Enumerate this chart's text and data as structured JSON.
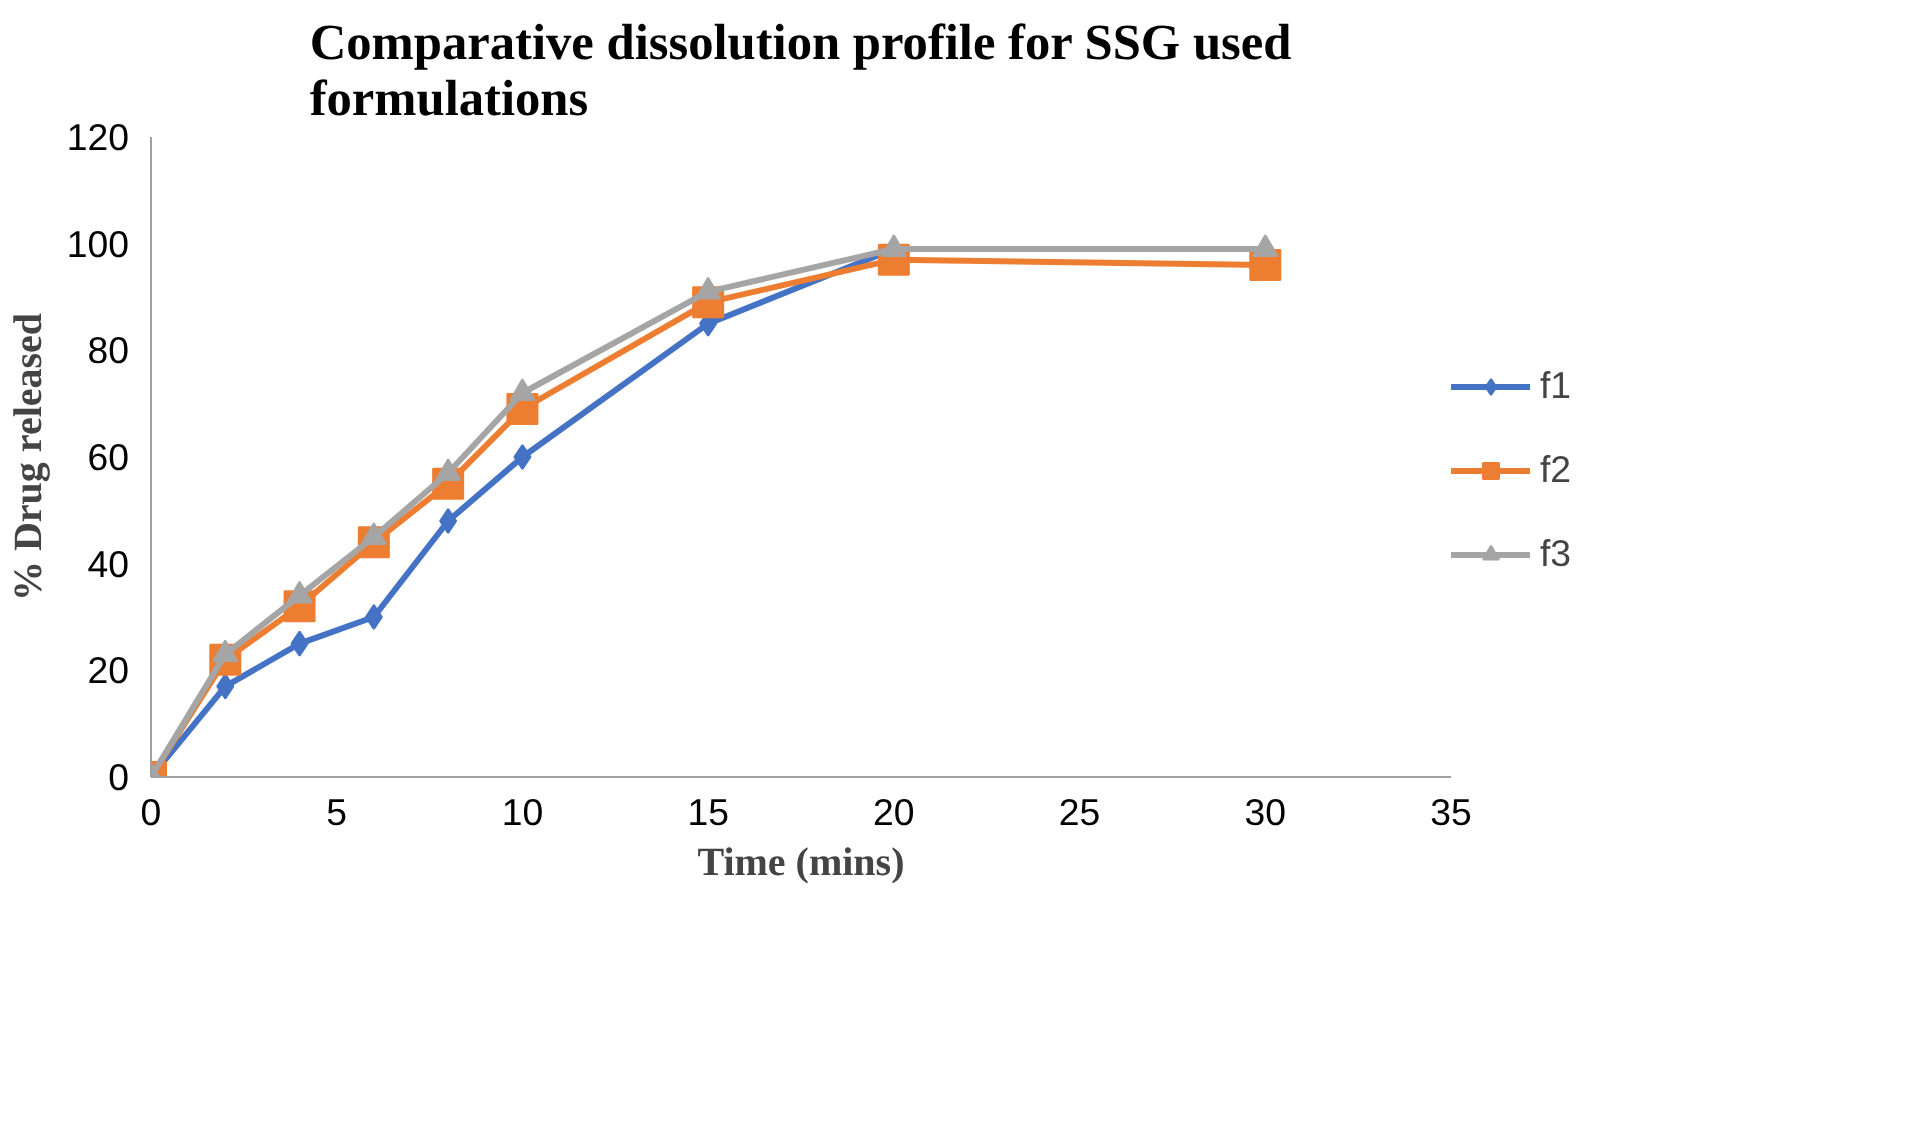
{
  "chart_data": {
    "type": "line",
    "title": "Comparative dissolution profile for SSG used\nformulations",
    "xlabel": "Time (mins)",
    "ylabel": "% Drug released",
    "x": [
      0,
      2,
      4,
      6,
      8,
      10,
      15,
      20,
      30
    ],
    "series": [
      {
        "name": "f1",
        "color": "#4472c4",
        "marker": "diamond",
        "values": [
          0,
          17,
          25,
          30,
          48,
          60,
          85,
          99,
          99
        ]
      },
      {
        "name": "f2",
        "color": "#ed7d31",
        "marker": "square",
        "values": [
          0,
          22,
          32,
          44,
          55,
          69,
          89,
          97,
          96
        ]
      },
      {
        "name": "f3",
        "color": "#a5a5a5",
        "marker": "triangle",
        "values": [
          0,
          23,
          34,
          45,
          57,
          72,
          91,
          99,
          99
        ]
      }
    ],
    "xlim": [
      0,
      35
    ],
    "xticks": [
      0,
      5,
      10,
      15,
      20,
      25,
      30,
      35
    ],
    "ylim": [
      0,
      120
    ],
    "yticks": [
      0,
      20,
      40,
      60,
      80,
      100,
      120
    ],
    "grid": false,
    "legend": "right",
    "line_style": "solid"
  }
}
